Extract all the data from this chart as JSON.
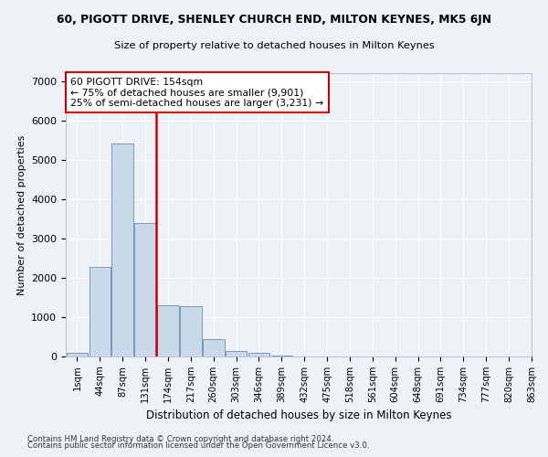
{
  "title1": "60, PIGOTT DRIVE, SHENLEY CHURCH END, MILTON KEYNES, MK5 6JN",
  "title2": "Size of property relative to detached houses in Milton Keynes",
  "xlabel": "Distribution of detached houses by size in Milton Keynes",
  "ylabel": "Number of detached properties",
  "footnote1": "Contains HM Land Registry data © Crown copyright and database right 2024.",
  "footnote2": "Contains public sector information licensed under the Open Government Licence v3.0.",
  "bar_color": "#c9d9ea",
  "bar_edge_color": "#7799bb",
  "bar_heights": [
    100,
    2280,
    5420,
    3400,
    1300,
    1280,
    450,
    150,
    90,
    30,
    5,
    2,
    1,
    0,
    0,
    0,
    0,
    0,
    0,
    0
  ],
  "bin_labels": [
    "1sqm",
    "44sqm",
    "87sqm",
    "131sqm",
    "174sqm",
    "217sqm",
    "260sqm",
    "303sqm",
    "346sqm",
    "389sqm",
    "432sqm",
    "475sqm",
    "518sqm",
    "561sqm",
    "604sqm",
    "648sqm",
    "691sqm",
    "734sqm",
    "777sqm",
    "820sqm",
    "863sqm"
  ],
  "vline_pos": 3.48,
  "vline_color": "#cc0000",
  "annotation_line1": "60 PIGOTT DRIVE: 154sqm",
  "annotation_line2": "← 75% of detached houses are smaller (9,901)",
  "annotation_line3": "25% of semi-detached houses are larger (3,231) →",
  "annotation_box_color": "#ffffff",
  "annotation_box_edge": "#cc0000",
  "ylim": [
    0,
    7200
  ],
  "yticks": [
    0,
    1000,
    2000,
    3000,
    4000,
    5000,
    6000,
    7000
  ],
  "background_color": "#eef2f7",
  "grid_color": "#ffffff"
}
